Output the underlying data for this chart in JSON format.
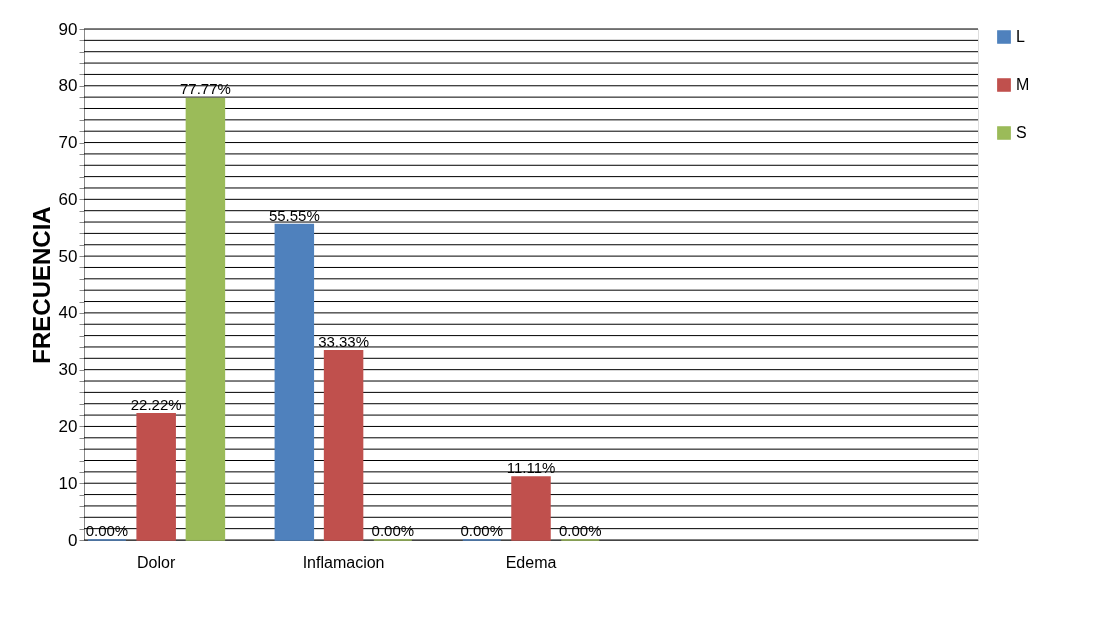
{
  "chart_data": {
    "type": "bar",
    "ylabel": "FRECUENCIA",
    "categories": [
      "Dolor",
      "Inflamacion",
      "Edema",
      null,
      null
    ],
    "series": [
      {
        "name": "L",
        "color": "#4f81bd",
        "values": [
          0,
          55.55,
          0,
          null,
          null
        ],
        "value_labels": [
          "0.00%",
          "55.55%",
          "0.00%",
          null,
          null
        ]
      },
      {
        "name": "M",
        "color": "#c0504d",
        "values": [
          22.22,
          33.33,
          11.11,
          null,
          null
        ],
        "value_labels": [
          "22.22%",
          "33.33%",
          "11.11%",
          null,
          null
        ]
      },
      {
        "name": "S",
        "color": "#9bbb59",
        "values": [
          77.77,
          0,
          0,
          null,
          null
        ],
        "value_labels": [
          "77.77%",
          "0.00%",
          "0.00%",
          null,
          null
        ]
      }
    ],
    "ylim": [
      0,
      90
    ],
    "yticks": [
      0,
      {
        "value": 2,
        "label": null
      },
      {
        "value": 4,
        "label": null
      },
      {
        "value": 6,
        "label": null
      },
      {
        "value": 8,
        "label": null
      },
      10,
      {
        "value": 12,
        "label": null
      },
      {
        "value": 14,
        "label": null
      },
      {
        "value": 16,
        "label": null
      },
      {
        "value": 18,
        "label": null
      },
      20,
      {
        "value": 22,
        "label": null
      },
      {
        "value": 24,
        "label": null
      },
      {
        "value": 26,
        "label": null
      },
      {
        "value": 28,
        "label": null
      },
      30,
      {
        "value": 32,
        "label": null
      },
      {
        "value": 34,
        "label": null
      },
      {
        "value": 36,
        "label": null
      },
      {
        "value": 38,
        "label": null
      },
      40,
      {
        "value": 42,
        "label": null
      },
      {
        "value": 44,
        "label": null
      },
      {
        "value": 46,
        "label": null
      },
      {
        "value": 48,
        "label": null
      },
      50,
      {
        "value": 52,
        "label": null
      },
      {
        "value": 54,
        "label": null
      },
      {
        "value": 56,
        "label": null
      },
      {
        "value": 58,
        "label": null
      },
      60,
      {
        "value": 62,
        "label": null
      },
      {
        "value": 64,
        "label": null
      },
      {
        "value": 66,
        "label": null
      },
      {
        "value": 68,
        "label": null
      },
      70,
      {
        "value": 72,
        "label": null
      },
      {
        "value": 74,
        "label": null
      },
      {
        "value": 76,
        "label": null
      },
      {
        "value": 78,
        "label": null
      },
      80,
      {
        "value": 82,
        "label": null
      },
      {
        "value": 84,
        "label": null
      },
      {
        "value": 86,
        "label": null
      },
      {
        "value": 88,
        "label": null
      },
      90
    ],
    "grid": "y",
    "legend": "right"
  }
}
